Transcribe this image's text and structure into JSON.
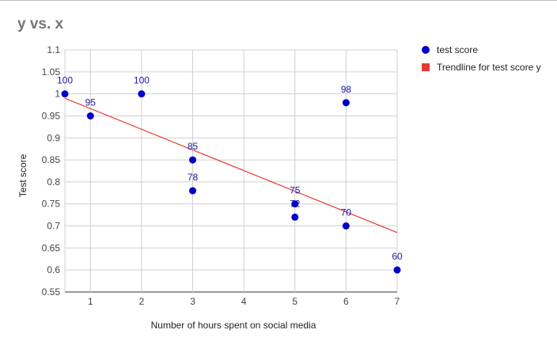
{
  "chart_data": {
    "type": "scatter",
    "title": "y vs. x",
    "xlabel": "Number of hours spent on social media",
    "ylabel": "Test score",
    "xlim": [
      0.5,
      7
    ],
    "ylim": [
      0.55,
      1.1
    ],
    "xticks": [
      1,
      2,
      3,
      4,
      5,
      6,
      7
    ],
    "yticks": [
      0.55,
      0.6,
      0.65,
      0.7,
      0.75,
      0.8,
      0.85,
      0.9,
      0.95,
      1,
      1.05,
      1.1
    ],
    "ytick_labels": [
      "0.55",
      "0.6",
      "0.65",
      "0.7",
      "0.75",
      "0.8",
      "0.85",
      "0.9",
      "0.95",
      "1",
      "1.05",
      "1.1"
    ],
    "grid": true,
    "legend_position": "right",
    "series": [
      {
        "name": "test score",
        "color": "#0000cc",
        "points": [
          {
            "x": 0.5,
            "y": 1.0,
            "label": "100"
          },
          {
            "x": 1,
            "y": 0.95,
            "label": "95"
          },
          {
            "x": 2,
            "y": 1.0,
            "label": "100"
          },
          {
            "x": 3,
            "y": 0.85,
            "label": "85"
          },
          {
            "x": 3,
            "y": 0.78,
            "label": "78"
          },
          {
            "x": 5,
            "y": 0.75,
            "label": "75"
          },
          {
            "x": 5,
            "y": 0.72,
            "label": "72"
          },
          {
            "x": 6,
            "y": 0.98,
            "label": "98"
          },
          {
            "x": 6,
            "y": 0.7,
            "label": "70"
          },
          {
            "x": 7,
            "y": 0.6,
            "label": "60"
          }
        ]
      }
    ],
    "trendline": {
      "name": "Trendline for test score y",
      "color": "#e53935",
      "start": {
        "x": 0.5,
        "y": 0.99
      },
      "end": {
        "x": 7,
        "y": 0.685
      }
    }
  }
}
